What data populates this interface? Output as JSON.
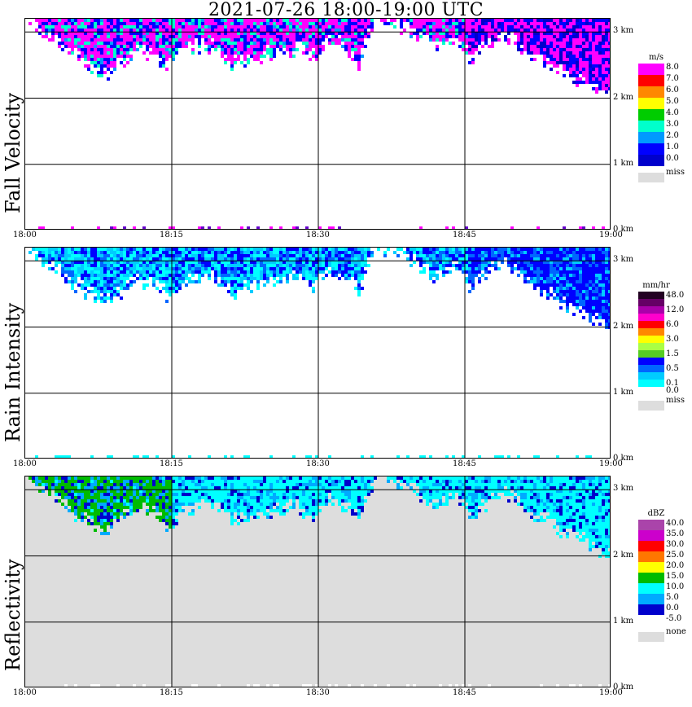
{
  "title": "2021-07-26   18:00-19:00 UTC",
  "chart_data": [
    {
      "type": "heatmap",
      "title": "Fall Velocity",
      "ylabel": "Fall Velocity",
      "xlabel": "",
      "x_ticks": [
        "18:00",
        "18:15",
        "18:30",
        "18:45",
        "19:00"
      ],
      "y_ticks": [
        "0 km",
        "1 km",
        "2 km",
        "3 km"
      ],
      "ylim": [
        0,
        3.2
      ],
      "background": "#ffffff",
      "colorbar": {
        "unit": "m/s",
        "entries": [
          {
            "label": "8.0",
            "color": "#ff00ff"
          },
          {
            "label": "7.0",
            "color": "#ff0000"
          },
          {
            "label": "6.0",
            "color": "#ff8800"
          },
          {
            "label": "5.0",
            "color": "#ffff00"
          },
          {
            "label": "4.0",
            "color": "#00cc00"
          },
          {
            "label": "3.0",
            "color": "#00ffcc"
          },
          {
            "label": "2.0",
            "color": "#0099ff"
          },
          {
            "label": "1.0",
            "color": "#0000ff"
          },
          {
            "label": "0.0",
            "color": "#0000cc"
          }
        ],
        "missing": {
          "label": "miss",
          "color": "#dddddd"
        }
      },
      "echo_top_km": [
        3.2,
        2.95,
        2.85,
        2.6,
        2.45,
        2.3,
        2.5,
        2.7,
        2.6,
        2.4,
        2.65,
        2.75,
        2.7,
        2.45,
        2.55,
        2.6,
        2.65,
        2.7,
        2.55,
        2.8,
        2.75,
        2.5,
        3.2,
        3.1,
        3.0,
        2.85,
        2.7,
        2.9,
        2.55,
        2.75,
        2.9,
        2.8,
        2.55,
        2.45,
        2.3,
        2.2,
        2.05,
        1.95
      ]
    },
    {
      "type": "heatmap",
      "title": "Rain Intensity",
      "ylabel": "Rain Intensity",
      "xlabel": "",
      "x_ticks": [
        "18:00",
        "18:15",
        "18:30",
        "18:45",
        "19:00"
      ],
      "y_ticks": [
        "0 km",
        "1 km",
        "2 km",
        "3 km"
      ],
      "ylim": [
        0,
        3.2
      ],
      "background": "#ffffff",
      "colorbar": {
        "unit": "mm/hr",
        "entries": [
          {
            "label": "48.0",
            "color": "#220022"
          },
          {
            "label": "",
            "color": "#660066"
          },
          {
            "label": "12.0",
            "color": "#aa00aa"
          },
          {
            "label": "",
            "color": "#ff00cc"
          },
          {
            "label": "6.0",
            "color": "#ff0000"
          },
          {
            "label": "",
            "color": "#ff8800"
          },
          {
            "label": "3.0",
            "color": "#ffff00"
          },
          {
            "label": "",
            "color": "#aaff44"
          },
          {
            "label": "1.5",
            "color": "#55cc22"
          },
          {
            "label": "",
            "color": "#0000ff"
          },
          {
            "label": "0.5",
            "color": "#0066ff"
          },
          {
            "label": "",
            "color": "#00ccff"
          },
          {
            "label": "0.1",
            "color": "#00ffff"
          },
          {
            "label": "0.0",
            "color": "#ffffff"
          }
        ],
        "missing": {
          "label": "miss",
          "color": "#dddddd"
        }
      },
      "echo_top_km": [
        3.2,
        2.95,
        2.85,
        2.6,
        2.45,
        2.3,
        2.5,
        2.7,
        2.6,
        2.4,
        2.65,
        2.75,
        2.7,
        2.45,
        2.55,
        2.6,
        2.65,
        2.7,
        2.55,
        2.8,
        2.75,
        2.5,
        3.2,
        3.1,
        3.0,
        2.85,
        2.7,
        2.9,
        2.55,
        2.75,
        2.9,
        2.8,
        2.55,
        2.45,
        2.3,
        2.2,
        2.05,
        1.95
      ]
    },
    {
      "type": "heatmap",
      "title": "Reflectivity",
      "ylabel": "Reflectivity",
      "xlabel": "",
      "x_ticks": [
        "18:00",
        "18:15",
        "18:30",
        "18:45",
        "19:00"
      ],
      "y_ticks": [
        "0 km",
        "1 km",
        "2 km",
        "3 km"
      ],
      "ylim": [
        0,
        3.2
      ],
      "background": "#dddddd",
      "colorbar": {
        "unit": "dBZ",
        "entries": [
          {
            "label": "40.0",
            "color": "#aa44aa"
          },
          {
            "label": "35.0",
            "color": "#cc00cc"
          },
          {
            "label": "30.0",
            "color": "#ff0000"
          },
          {
            "label": "25.0",
            "color": "#ff7700"
          },
          {
            "label": "20.0",
            "color": "#ffff00"
          },
          {
            "label": "15.0",
            "color": "#00bb00"
          },
          {
            "label": "10.0",
            "color": "#00ffff"
          },
          {
            "label": "5.0",
            "color": "#00aaff"
          },
          {
            "label": "0.0",
            "color": "#0000cc"
          },
          {
            "label": "-5.0",
            "color": "#ffffff"
          }
        ],
        "missing": {
          "label": "none",
          "color": "#dddddd"
        }
      },
      "echo_top_km": [
        3.2,
        2.95,
        2.85,
        2.6,
        2.45,
        2.3,
        2.5,
        2.7,
        2.6,
        2.4,
        2.65,
        2.75,
        2.7,
        2.45,
        2.55,
        2.6,
        2.65,
        2.7,
        2.55,
        2.8,
        2.75,
        2.5,
        3.2,
        3.1,
        3.0,
        2.85,
        2.7,
        2.9,
        2.55,
        2.75,
        2.9,
        2.8,
        2.55,
        2.45,
        2.3,
        2.2,
        2.05,
        1.95
      ]
    }
  ]
}
